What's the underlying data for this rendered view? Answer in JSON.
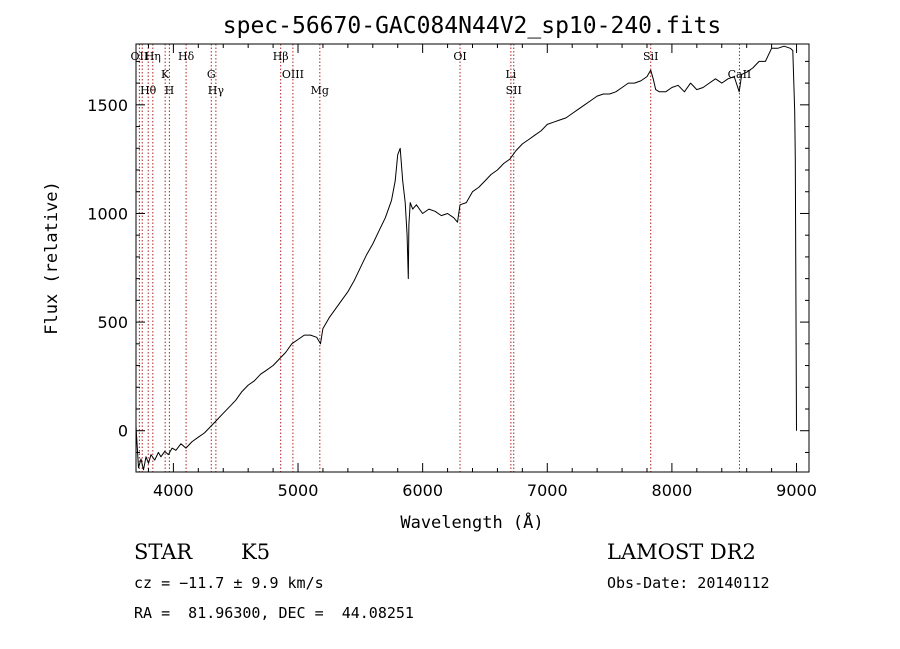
{
  "chart_data": {
    "type": "line",
    "title": "spec-56670-GAC084N44V2_sp10-240.fits",
    "xlabel": "Wavelength (Å)",
    "ylabel": "Flux (relative)",
    "xlim": [
      3700,
      9100
    ],
    "ylim": [
      -190,
      1780
    ],
    "xticks": [
      4000,
      5000,
      6000,
      7000,
      8000,
      9000
    ],
    "yticks": [
      0,
      500,
      1000,
      1500
    ],
    "grid": false,
    "series": [
      {
        "x": [
          3700,
          3720,
          3740,
          3760,
          3780,
          3800,
          3820,
          3850,
          3880,
          3900,
          3930,
          3960,
          3990,
          4020,
          4060,
          4100,
          4150,
          4200,
          4250,
          4300,
          4350,
          4400,
          4450,
          4500,
          4550,
          4600,
          4650,
          4700,
          4750,
          4800,
          4850,
          4900,
          4950,
          5000,
          5050,
          5100,
          5150,
          5180,
          5200,
          5250,
          5300,
          5350,
          5400,
          5450,
          5500,
          5550,
          5600,
          5650,
          5700,
          5750,
          5780,
          5800,
          5820,
          5840,
          5860,
          5875,
          5885,
          5890,
          5895,
          5900,
          5920,
          5950,
          6000,
          6050,
          6100,
          6150,
          6200,
          6250,
          6280,
          6300,
          6350,
          6400,
          6450,
          6500,
          6550,
          6600,
          6650,
          6700,
          6750,
          6800,
          6850,
          6900,
          6950,
          7000,
          7050,
          7100,
          7150,
          7200,
          7250,
          7300,
          7350,
          7400,
          7450,
          7500,
          7550,
          7600,
          7650,
          7700,
          7750,
          7800,
          7830,
          7850,
          7870,
          7900,
          7950,
          8000,
          8050,
          8100,
          8150,
          8200,
          8250,
          8300,
          8350,
          8400,
          8450,
          8500,
          8540,
          8560,
          8600,
          8650,
          8700,
          8750,
          8800,
          8850,
          8900,
          8950,
          8970,
          8985,
          8990,
          9000
        ],
        "y": [
          20,
          -170,
          -130,
          -180,
          -120,
          -150,
          -110,
          -135,
          -100,
          -120,
          -95,
          -110,
          -80,
          -90,
          -60,
          -80,
          -50,
          -30,
          -10,
          20,
          50,
          80,
          110,
          140,
          180,
          210,
          230,
          260,
          280,
          300,
          330,
          360,
          400,
          420,
          440,
          440,
          430,
          400,
          470,
          520,
          560,
          600,
          640,
          690,
          750,
          810,
          860,
          920,
          980,
          1060,
          1150,
          1270,
          1300,
          1150,
          1050,
          900,
          700,
          950,
          1000,
          1050,
          1020,
          1040,
          1000,
          1020,
          1010,
          990,
          1000,
          980,
          960,
          1040,
          1050,
          1100,
          1120,
          1150,
          1180,
          1200,
          1230,
          1250,
          1290,
          1320,
          1340,
          1360,
          1380,
          1410,
          1420,
          1430,
          1440,
          1460,
          1480,
          1500,
          1520,
          1540,
          1550,
          1550,
          1560,
          1580,
          1600,
          1600,
          1610,
          1630,
          1660,
          1620,
          1570,
          1560,
          1560,
          1580,
          1590,
          1560,
          1600,
          1570,
          1580,
          1600,
          1620,
          1600,
          1620,
          1630,
          1560,
          1640,
          1650,
          1670,
          1700,
          1700,
          1760,
          1760,
          1770,
          1760,
          1750,
          1470,
          1250,
          0
        ]
      }
    ],
    "lines": [
      {
        "wavelength": 3727,
        "labels": [
          "OII"
        ]
      },
      {
        "wavelength": 3750,
        "labels": [
          ""
        ]
      },
      {
        "wavelength": 3798,
        "labels": [
          "Hθ"
        ]
      },
      {
        "wavelength": 3835,
        "labels": [
          "Hη"
        ]
      },
      {
        "wavelength": 3934,
        "labels": [
          "K"
        ]
      },
      {
        "wavelength": 3968,
        "labels": [
          "H"
        ]
      },
      {
        "wavelength": 4102,
        "labels": [
          "Hδ"
        ]
      },
      {
        "wavelength": 4304,
        "labels": [
          "G"
        ]
      },
      {
        "wavelength": 4341,
        "labels": [
          "Hγ"
        ]
      },
      {
        "wavelength": 4861,
        "labels": [
          "Hβ"
        ]
      },
      {
        "wavelength": 4959,
        "labels": [
          "OIII"
        ]
      },
      {
        "wavelength": 5175,
        "labels": [
          "Mg"
        ]
      },
      {
        "wavelength": 6300,
        "labels": [
          "OI"
        ]
      },
      {
        "wavelength": 6708,
        "labels": [
          "Li"
        ]
      },
      {
        "wavelength": 6731,
        "labels": [
          "SII"
        ]
      },
      {
        "wavelength": 7830,
        "labels": [
          "SiI"
        ]
      },
      {
        "wavelength": 8542,
        "labels": [
          "CaII"
        ]
      }
    ]
  },
  "info": {
    "object_class": "STAR",
    "subclass": "K5",
    "survey": "LAMOST DR2",
    "cz": "cz = −11.7 ± 9.9 km/s",
    "obs_date": "Obs-Date: 20140112",
    "coords": "RA =  81.96300, DEC =  44.08251"
  },
  "colors": {
    "spectrum": "#000000",
    "line_marker": "#b22222",
    "axes": "#000000",
    "background": "#ffffff"
  }
}
